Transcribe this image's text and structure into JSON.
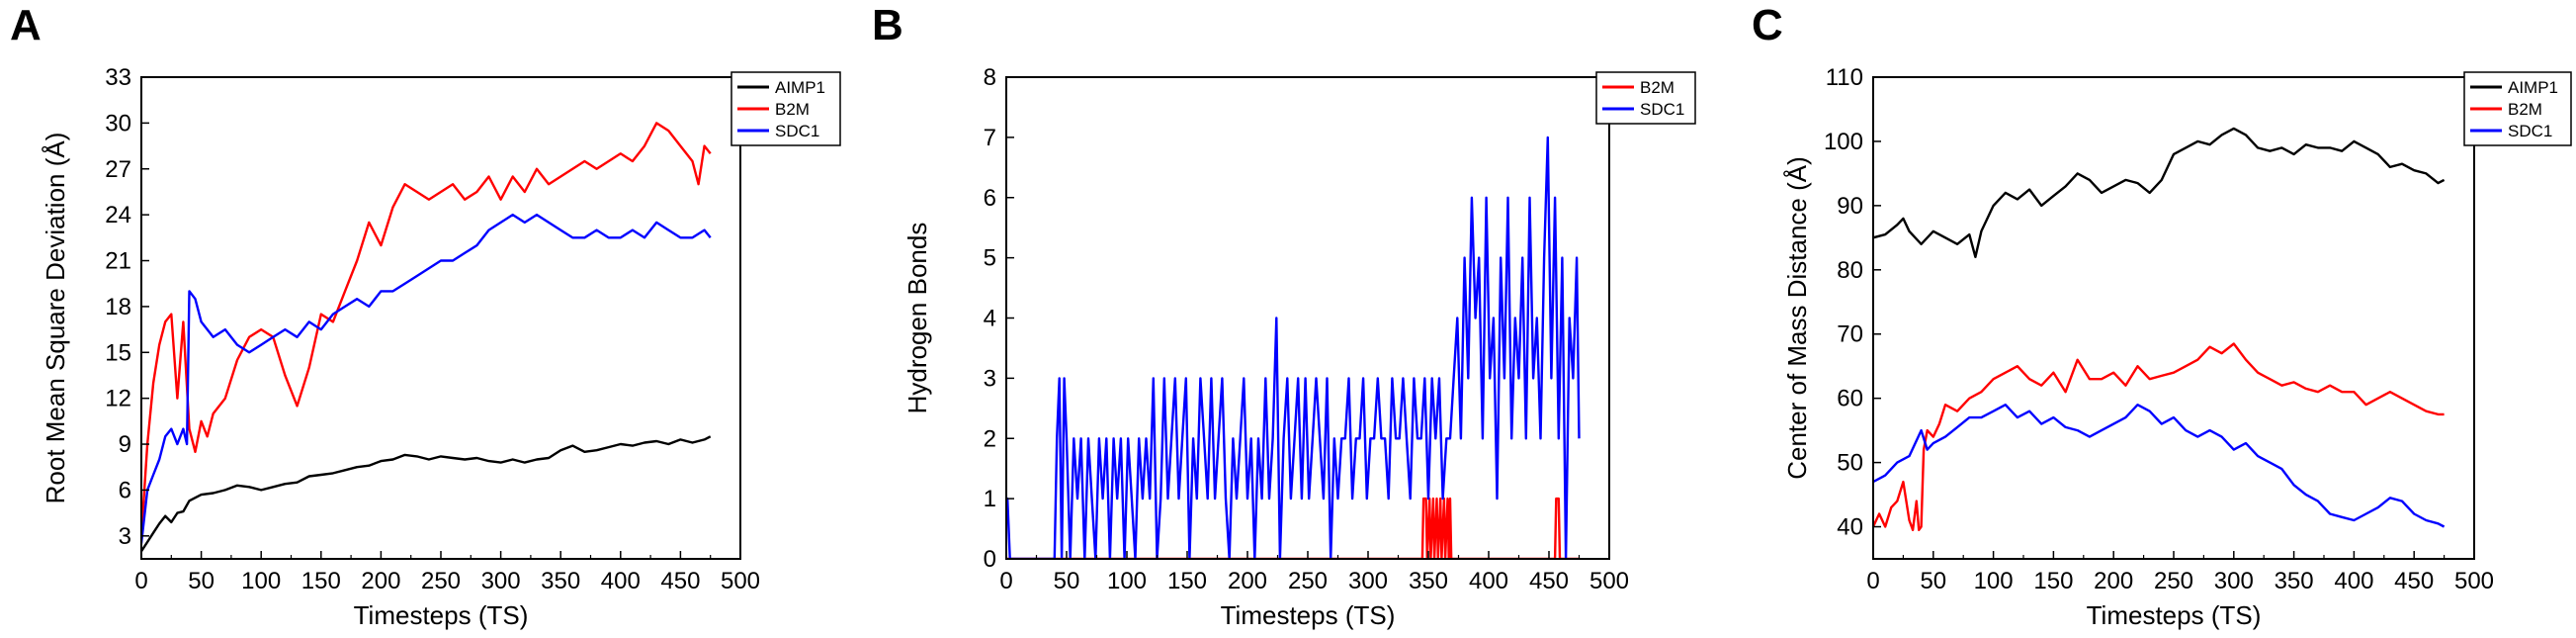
{
  "chart_data": [
    {
      "type": "line",
      "panel_label": "A",
      "title": "",
      "xlabel": "Timesteps (TS)",
      "ylabel": "Root Mean Square Deviation (Å)",
      "xlim": [
        0,
        500
      ],
      "ylim": [
        1.5,
        33
      ],
      "xticks": [
        0,
        50,
        100,
        150,
        200,
        250,
        300,
        350,
        400,
        450,
        500
      ],
      "yticks": [
        3,
        6,
        9,
        12,
        15,
        18,
        21,
        24,
        27,
        30,
        33
      ],
      "grid": false,
      "legend_position": "top-right",
      "series": [
        {
          "name": "AIMP1",
          "color": "#000000",
          "x": [
            0,
            5,
            10,
            15,
            20,
            25,
            30,
            35,
            40,
            45,
            50,
            60,
            70,
            80,
            90,
            100,
            110,
            120,
            130,
            140,
            150,
            160,
            170,
            180,
            190,
            200,
            210,
            220,
            230,
            240,
            250,
            260,
            270,
            280,
            290,
            300,
            310,
            320,
            330,
            340,
            350,
            360,
            370,
            380,
            390,
            400,
            410,
            420,
            430,
            440,
            450,
            460,
            470,
            475
          ],
          "y": [
            2.0,
            2.6,
            3.2,
            3.8,
            4.3,
            3.9,
            4.5,
            4.6,
            5.3,
            5.5,
            5.7,
            5.8,
            6.0,
            6.3,
            6.2,
            6.0,
            6.2,
            6.4,
            6.5,
            6.9,
            7.0,
            7.1,
            7.3,
            7.5,
            7.6,
            7.9,
            8.0,
            8.3,
            8.2,
            8.0,
            8.2,
            8.1,
            8.0,
            8.1,
            7.9,
            7.8,
            8.0,
            7.8,
            8.0,
            8.1,
            8.6,
            8.9,
            8.5,
            8.6,
            8.8,
            9.0,
            8.9,
            9.1,
            9.2,
            9.0,
            9.3,
            9.1,
            9.3,
            9.5
          ]
        },
        {
          "name": "B2M",
          "color": "#ff0000",
          "x": [
            0,
            5,
            10,
            15,
            20,
            25,
            30,
            35,
            40,
            45,
            50,
            55,
            60,
            70,
            80,
            90,
            100,
            110,
            120,
            130,
            140,
            150,
            160,
            170,
            180,
            190,
            200,
            210,
            220,
            230,
            240,
            250,
            260,
            270,
            280,
            290,
            300,
            310,
            320,
            330,
            340,
            350,
            360,
            370,
            380,
            390,
            400,
            410,
            420,
            430,
            440,
            450,
            460,
            465,
            470,
            475
          ],
          "y": [
            3.0,
            9.0,
            13.0,
            15.5,
            17.0,
            17.5,
            12.0,
            17.0,
            10.0,
            8.5,
            10.5,
            9.5,
            11.0,
            12.0,
            14.5,
            16.0,
            16.5,
            16.0,
            13.5,
            11.5,
            14.0,
            17.5,
            17.0,
            19.0,
            21.0,
            23.5,
            22.0,
            24.5,
            26.0,
            25.5,
            25.0,
            25.5,
            26.0,
            25.0,
            25.5,
            26.5,
            25.0,
            26.5,
            25.5,
            27.0,
            26.0,
            26.5,
            27.0,
            27.5,
            27.0,
            27.5,
            28.0,
            27.5,
            28.5,
            30.0,
            29.5,
            28.5,
            27.5,
            26.0,
            28.5,
            28.0
          ]
        },
        {
          "name": "SDC1",
          "color": "#0000ff",
          "x": [
            0,
            5,
            10,
            15,
            20,
            25,
            30,
            35,
            38,
            40,
            45,
            50,
            60,
            70,
            80,
            90,
            100,
            110,
            120,
            130,
            140,
            150,
            160,
            170,
            180,
            190,
            200,
            210,
            220,
            230,
            240,
            250,
            260,
            270,
            280,
            290,
            300,
            310,
            320,
            330,
            340,
            350,
            360,
            370,
            380,
            390,
            400,
            410,
            420,
            430,
            440,
            450,
            460,
            470,
            475
          ],
          "y": [
            2.5,
            6.0,
            7.0,
            8.0,
            9.5,
            10.0,
            9.0,
            10.0,
            9.0,
            19.0,
            18.5,
            17.0,
            16.0,
            16.5,
            15.5,
            15.0,
            15.5,
            16.0,
            16.5,
            16.0,
            17.0,
            16.5,
            17.5,
            18.0,
            18.5,
            18.0,
            19.0,
            19.0,
            19.5,
            20.0,
            20.5,
            21.0,
            21.0,
            21.5,
            22.0,
            23.0,
            23.5,
            24.0,
            23.5,
            24.0,
            23.5,
            23.0,
            22.5,
            22.5,
            23.0,
            22.5,
            22.5,
            23.0,
            22.5,
            23.5,
            23.0,
            22.5,
            22.5,
            23.0,
            22.5
          ]
        }
      ]
    },
    {
      "type": "line",
      "panel_label": "B",
      "title": "",
      "xlabel": "Timesteps (TS)",
      "ylabel": "Hydrogen Bonds",
      "xlim": [
        0,
        500
      ],
      "ylim": [
        0,
        8
      ],
      "xticks": [
        0,
        50,
        100,
        150,
        200,
        250,
        300,
        350,
        400,
        450,
        500
      ],
      "yticks": [
        0,
        1,
        2,
        3,
        4,
        5,
        6,
        7,
        8
      ],
      "grid": false,
      "legend_position": "top-right",
      "series": [
        {
          "name": "B2M",
          "color": "#ff0000",
          "x": [
            0,
            345,
            346,
            348,
            349,
            351,
            352,
            354,
            355,
            357,
            358,
            360,
            361,
            363,
            364,
            366,
            367,
            368,
            369,
            455,
            456,
            458,
            459,
            475
          ],
          "y": [
            0,
            0,
            1,
            1,
            0,
            1,
            0,
            1,
            0,
            1,
            0,
            1,
            0,
            1,
            0,
            1,
            0,
            1,
            0,
            0,
            1,
            1,
            0,
            0
          ]
        },
        {
          "name": "SDC1",
          "color": "#0000ff",
          "x": [
            0,
            1,
            3,
            40,
            42,
            44,
            46,
            48,
            50,
            53,
            56,
            59,
            62,
            65,
            68,
            71,
            74,
            77,
            80,
            83,
            86,
            89,
            92,
            95,
            98,
            101,
            104,
            107,
            110,
            113,
            116,
            119,
            122,
            125,
            128,
            131,
            134,
            137,
            140,
            143,
            146,
            149,
            152,
            155,
            158,
            161,
            164,
            167,
            170,
            173,
            176,
            179,
            182,
            185,
            188,
            191,
            194,
            197,
            200,
            203,
            206,
            209,
            212,
            215,
            218,
            221,
            224,
            227,
            230,
            233,
            236,
            239,
            242,
            245,
            248,
            251,
            254,
            257,
            260,
            263,
            266,
            269,
            272,
            275,
            278,
            281,
            284,
            287,
            290,
            293,
            296,
            299,
            302,
            305,
            308,
            311,
            314,
            317,
            320,
            323,
            326,
            329,
            332,
            335,
            338,
            341,
            344,
            347,
            350,
            353,
            356,
            359,
            362,
            365,
            368,
            371,
            374,
            377,
            380,
            383,
            386,
            389,
            392,
            395,
            398,
            401,
            404,
            407,
            410,
            413,
            416,
            419,
            422,
            425,
            428,
            431,
            434,
            437,
            440,
            443,
            446,
            449,
            452,
            455,
            458,
            461,
            464,
            467,
            470,
            473,
            475
          ],
          "y": [
            1,
            1,
            0,
            0,
            2,
            3,
            0,
            3,
            2,
            0,
            2,
            1,
            2,
            0,
            2,
            1,
            0,
            2,
            1,
            2,
            0,
            2,
            1,
            2,
            0,
            2,
            1,
            0,
            2,
            1,
            2,
            1,
            3,
            0,
            1,
            3,
            1,
            2,
            3,
            1,
            2,
            3,
            0,
            2,
            1,
            3,
            2,
            1,
            3,
            1,
            2,
            3,
            1,
            0,
            2,
            1,
            2,
            3,
            1,
            2,
            0,
            2,
            1,
            3,
            1,
            2,
            4,
            0,
            2,
            3,
            1,
            2,
            3,
            1,
            3,
            1,
            2,
            3,
            2,
            1,
            3,
            0,
            2,
            1,
            2,
            2,
            3,
            1,
            2,
            2,
            3,
            1,
            2,
            2,
            3,
            2,
            2,
            1,
            3,
            2,
            2,
            3,
            2,
            1,
            3,
            2,
            2,
            3,
            1,
            3,
            2,
            3,
            1,
            2,
            2,
            3,
            4,
            2,
            5,
            3,
            6,
            4,
            5,
            2,
            6,
            3,
            4,
            1,
            5,
            3,
            6,
            2,
            4,
            3,
            5,
            2,
            6,
            3,
            4,
            2,
            5,
            7,
            3,
            6,
            2,
            5,
            0,
            4,
            3,
            5,
            2
          ]
        }
      ]
    },
    {
      "type": "line",
      "panel_label": "C",
      "title": "",
      "xlabel": "Timesteps (TS)",
      "ylabel": "Center of Mass Distance (Å)",
      "xlim": [
        0,
        500
      ],
      "ylim": [
        35,
        110
      ],
      "xticks": [
        0,
        50,
        100,
        150,
        200,
        250,
        300,
        350,
        400,
        450,
        500
      ],
      "yticks": [
        40,
        50,
        60,
        70,
        80,
        90,
        100,
        110
      ],
      "grid": false,
      "legend_position": "top-right",
      "series": [
        {
          "name": "AIMP1",
          "color": "#000000",
          "x": [
            0,
            10,
            20,
            25,
            30,
            40,
            50,
            60,
            70,
            80,
            85,
            90,
            100,
            110,
            120,
            130,
            140,
            150,
            160,
            170,
            180,
            190,
            200,
            210,
            220,
            230,
            240,
            250,
            260,
            270,
            280,
            290,
            300,
            310,
            320,
            330,
            340,
            350,
            360,
            370,
            380,
            390,
            400,
            410,
            420,
            430,
            440,
            450,
            460,
            470,
            475
          ],
          "y": [
            85.0,
            85.5,
            87.0,
            88.0,
            86.0,
            84.0,
            86.0,
            85.0,
            84.0,
            85.5,
            82.0,
            86.0,
            90.0,
            92.0,
            91.0,
            92.5,
            90.0,
            91.5,
            93.0,
            95.0,
            94.0,
            92.0,
            93.0,
            94.0,
            93.5,
            92.0,
            94.0,
            98.0,
            99.0,
            100.0,
            99.5,
            101.0,
            102.0,
            101.0,
            99.0,
            98.5,
            99.0,
            98.0,
            99.5,
            99.0,
            99.0,
            98.5,
            100.0,
            99.0,
            98.0,
            96.0,
            96.5,
            95.5,
            95.0,
            93.5,
            94.0
          ]
        },
        {
          "name": "B2M",
          "color": "#ff0000",
          "x": [
            0,
            5,
            10,
            15,
            20,
            25,
            30,
            33,
            36,
            38,
            40,
            42,
            45,
            50,
            55,
            60,
            70,
            80,
            90,
            100,
            110,
            120,
            130,
            140,
            150,
            160,
            170,
            180,
            190,
            200,
            210,
            220,
            230,
            240,
            250,
            260,
            270,
            280,
            290,
            300,
            310,
            320,
            330,
            340,
            350,
            360,
            370,
            380,
            390,
            400,
            410,
            420,
            430,
            440,
            450,
            460,
            470,
            475
          ],
          "y": [
            40.0,
            42.0,
            40.0,
            43.0,
            44.0,
            47.0,
            41.0,
            39.5,
            44.0,
            39.5,
            40.0,
            52.0,
            55.0,
            54.0,
            56.0,
            59.0,
            58.0,
            60.0,
            61.0,
            63.0,
            64.0,
            65.0,
            63.0,
            62.0,
            64.0,
            61.0,
            66.0,
            63.0,
            63.0,
            64.0,
            62.0,
            65.0,
            63.0,
            63.5,
            64.0,
            65.0,
            66.0,
            68.0,
            67.0,
            68.5,
            66.0,
            64.0,
            63.0,
            62.0,
            62.5,
            61.5,
            61.0,
            62.0,
            61.0,
            61.0,
            59.0,
            60.0,
            61.0,
            60.0,
            59.0,
            58.0,
            57.5,
            57.5
          ]
        },
        {
          "name": "SDC1",
          "color": "#0000ff",
          "x": [
            0,
            10,
            20,
            30,
            40,
            45,
            50,
            60,
            70,
            80,
            90,
            100,
            110,
            120,
            130,
            140,
            150,
            160,
            170,
            180,
            190,
            200,
            210,
            220,
            230,
            240,
            250,
            260,
            270,
            280,
            290,
            300,
            310,
            320,
            330,
            340,
            350,
            360,
            370,
            380,
            390,
            400,
            410,
            420,
            430,
            440,
            450,
            460,
            470,
            475
          ],
          "y": [
            47.0,
            48.0,
            50.0,
            51.0,
            55.0,
            52.0,
            53.0,
            54.0,
            55.5,
            57.0,
            57.0,
            58.0,
            59.0,
            57.0,
            58.0,
            56.0,
            57.0,
            55.5,
            55.0,
            54.0,
            55.0,
            56.0,
            57.0,
            59.0,
            58.0,
            56.0,
            57.0,
            55.0,
            54.0,
            55.0,
            54.0,
            52.0,
            53.0,
            51.0,
            50.0,
            49.0,
            46.5,
            45.0,
            44.0,
            42.0,
            41.5,
            41.0,
            42.0,
            43.0,
            44.5,
            44.0,
            42.0,
            41.0,
            40.5,
            40.0
          ]
        }
      ]
    }
  ]
}
